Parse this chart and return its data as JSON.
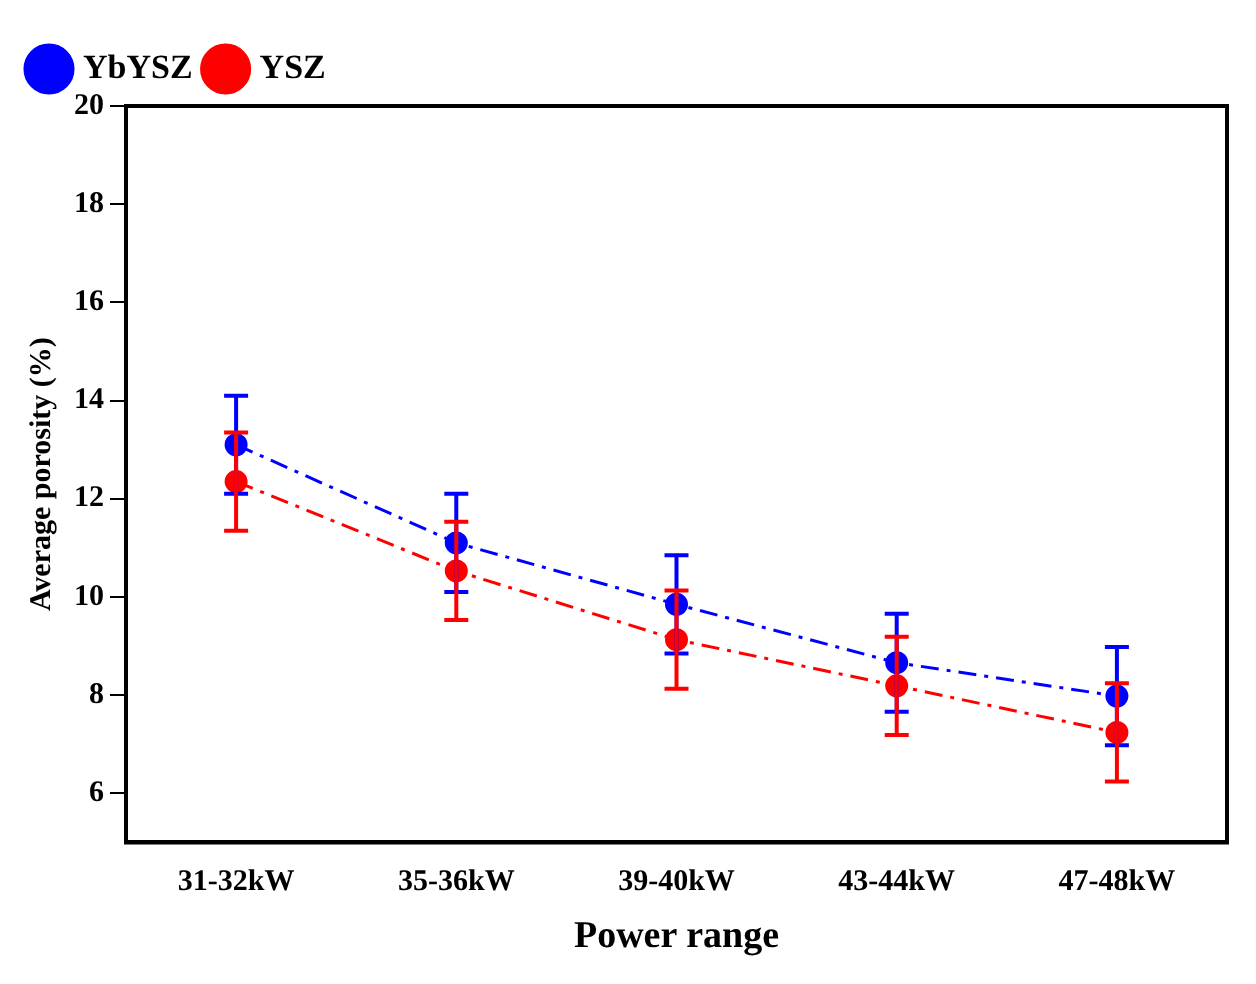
{
  "chart_data": {
    "type": "line",
    "xlabel": "Power range",
    "ylabel": "Average porosity (%)",
    "categories": [
      "31-32kW",
      "35-36kW",
      "39-40kW",
      "43-44kW",
      "47-48kW"
    ],
    "series": [
      {
        "name": "YbYSZ",
        "color": "#0000ff",
        "values": [
          13.1,
          11.1,
          9.85,
          8.66,
          7.98
        ],
        "errors": [
          1,
          1,
          1,
          1,
          1
        ]
      },
      {
        "name": "YSZ",
        "color": "#ff0000",
        "values": [
          12.35,
          10.53,
          9.13,
          8.19,
          7.24
        ],
        "errors": [
          1,
          1,
          1,
          1,
          1
        ]
      }
    ],
    "ylim": [
      5,
      20
    ],
    "yticks": [
      6,
      8,
      10,
      12,
      14,
      16,
      18,
      20
    ],
    "grid": false,
    "legend": "top left",
    "marker": "circle",
    "line_style": "dashed"
  }
}
